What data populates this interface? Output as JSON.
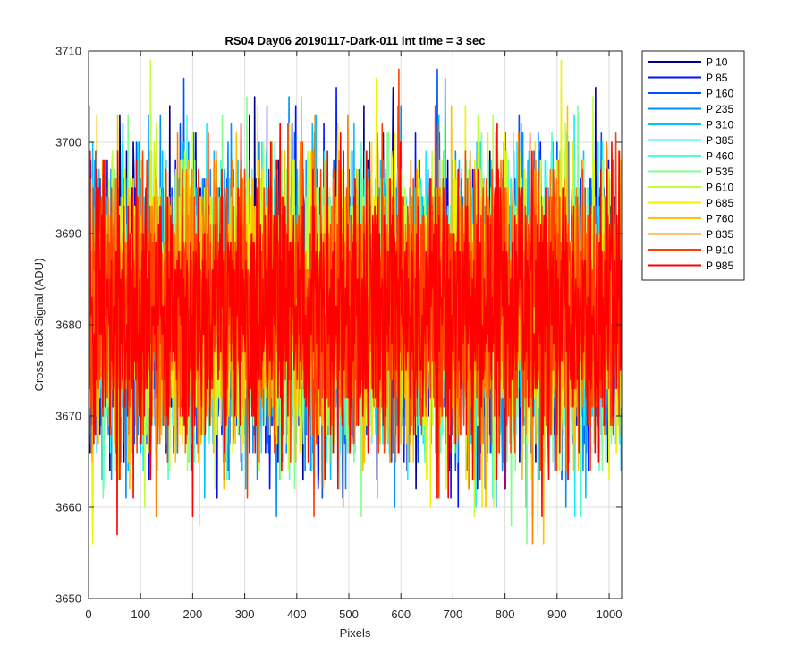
{
  "chart_data": {
    "type": "line",
    "title": "RS04 Day06 20190117-Dark-011 int time = 3 sec",
    "xlabel": "Pixels",
    "ylabel": "Cross Track Signal (ADU)",
    "xlim": [
      0,
      1024
    ],
    "ylim": [
      3650,
      3710
    ],
    "xticks": [
      0,
      100,
      200,
      300,
      400,
      500,
      600,
      700,
      800,
      900,
      1000
    ],
    "yticks": [
      3650,
      3660,
      3670,
      3680,
      3690,
      3700,
      3710
    ],
    "grid": true,
    "legend_position": "outside-top-right",
    "noise": {
      "mean": 3682,
      "std": 7.5,
      "min": 3656,
      "max": 3709,
      "n_points": 1024
    },
    "series": [
      {
        "name": "P 10",
        "color": "#00008F"
      },
      {
        "name": "P 85",
        "color": "#0010FF"
      },
      {
        "name": "P 160",
        "color": "#0050FF"
      },
      {
        "name": "P 235",
        "color": "#0090FF"
      },
      {
        "name": "P 310",
        "color": "#00C0FF"
      },
      {
        "name": "P 385",
        "color": "#10F0FF"
      },
      {
        "name": "P 460",
        "color": "#50FFD0"
      },
      {
        "name": "P 535",
        "color": "#80FF90"
      },
      {
        "name": "P 610",
        "color": "#C0FF40"
      },
      {
        "name": "P 685",
        "color": "#F0F000"
      },
      {
        "name": "P 760",
        "color": "#FFC000"
      },
      {
        "name": "P 835",
        "color": "#FF8000"
      },
      {
        "name": "P 910",
        "color": "#FF4000"
      },
      {
        "name": "P 985",
        "color": "#FF0000"
      }
    ]
  }
}
